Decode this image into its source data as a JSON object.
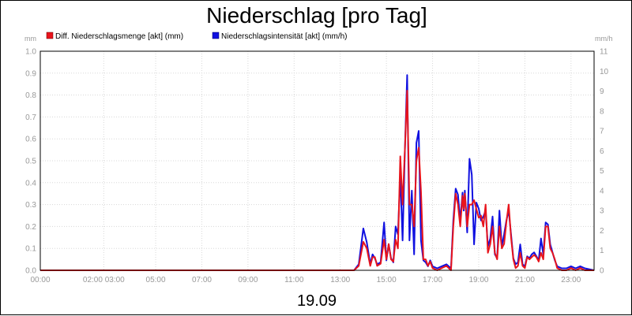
{
  "chart_data": {
    "type": "line",
    "title": "Niederschlag [pro Tag]",
    "date_label": "19.09",
    "left_axis": {
      "unit": "mm",
      "min": 0,
      "max": 1.0,
      "ticks": [
        "0.0",
        "0.1",
        "0.2",
        "0.3",
        "0.4",
        "0.5",
        "0.6",
        "0.7",
        "0.8",
        "0.9",
        "1.0"
      ]
    },
    "right_axis": {
      "unit": "mm/h",
      "min": 0,
      "max": 11,
      "ticks": [
        "0",
        "1",
        "2",
        "3",
        "4",
        "5",
        "6",
        "7",
        "8",
        "9",
        "10",
        "11"
      ]
    },
    "x_axis": {
      "min_hours": 0,
      "max_hours": 24,
      "ticks": [
        {
          "h": 0,
          "label": "00:00"
        },
        {
          "h": 2.75,
          "label": "02:00 03:00"
        },
        {
          "h": 5,
          "label": "05:00"
        },
        {
          "h": 7,
          "label": "07:00"
        },
        {
          "h": 9,
          "label": "09:00"
        },
        {
          "h": 11,
          "label": "11:00"
        },
        {
          "h": 13,
          "label": "13:00"
        },
        {
          "h": 15,
          "label": "15:00"
        },
        {
          "h": 17,
          "label": "17:00"
        },
        {
          "h": 19,
          "label": "19:00"
        },
        {
          "h": 21,
          "label": "21:00"
        },
        {
          "h": 23,
          "label": "23:00"
        }
      ]
    },
    "grid": true,
    "legend_position": "top-left",
    "series": [
      {
        "name": "Diff. Niederschlagsmenge [akt] (mm)",
        "color": "#e8141c",
        "axis": "left",
        "points": [
          [
            0,
            0
          ],
          [
            13.6,
            0
          ],
          [
            13.8,
            0.02
          ],
          [
            14.0,
            0.13
          ],
          [
            14.15,
            0.1
          ],
          [
            14.3,
            0.02
          ],
          [
            14.4,
            0.06
          ],
          [
            14.5,
            0.06
          ],
          [
            14.6,
            0.02
          ],
          [
            14.75,
            0.03
          ],
          [
            14.9,
            0.14
          ],
          [
            15.0,
            0.05
          ],
          [
            15.1,
            0.12
          ],
          [
            15.2,
            0.05
          ],
          [
            15.3,
            0.04
          ],
          [
            15.4,
            0.14
          ],
          [
            15.5,
            0.1
          ],
          [
            15.6,
            0.52
          ],
          [
            15.7,
            0.3
          ],
          [
            15.8,
            0.55
          ],
          [
            15.9,
            0.82
          ],
          [
            16.0,
            0.3
          ],
          [
            16.1,
            0.3
          ],
          [
            16.2,
            0.2
          ],
          [
            16.3,
            0.5
          ],
          [
            16.4,
            0.56
          ],
          [
            16.5,
            0.36
          ],
          [
            16.6,
            0.05
          ],
          [
            16.7,
            0.05
          ],
          [
            16.8,
            0.02
          ],
          [
            16.9,
            0.04
          ],
          [
            17.0,
            0.01
          ],
          [
            17.2,
            0.0
          ],
          [
            17.4,
            0.01
          ],
          [
            17.6,
            0.02
          ],
          [
            17.8,
            0.0
          ],
          [
            17.9,
            0.2
          ],
          [
            18.0,
            0.35
          ],
          [
            18.1,
            0.3
          ],
          [
            18.2,
            0.2
          ],
          [
            18.3,
            0.34
          ],
          [
            18.35,
            0.28
          ],
          [
            18.4,
            0.35
          ],
          [
            18.5,
            0.2
          ],
          [
            18.6,
            0.3
          ],
          [
            18.7,
            0.3
          ],
          [
            18.8,
            0.32
          ],
          [
            18.9,
            0.28
          ],
          [
            19.0,
            0.24
          ],
          [
            19.1,
            0.25
          ],
          [
            19.2,
            0.2
          ],
          [
            19.3,
            0.3
          ],
          [
            19.4,
            0.08
          ],
          [
            19.5,
            0.12
          ],
          [
            19.6,
            0.2
          ],
          [
            19.7,
            0.08
          ],
          [
            19.8,
            0.05
          ],
          [
            19.9,
            0.2
          ],
          [
            20.0,
            0.1
          ],
          [
            20.1,
            0.12
          ],
          [
            20.2,
            0.22
          ],
          [
            20.3,
            0.3
          ],
          [
            20.4,
            0.15
          ],
          [
            20.5,
            0.05
          ],
          [
            20.6,
            0.01
          ],
          [
            20.7,
            0.02
          ],
          [
            20.8,
            0.08
          ],
          [
            20.9,
            0.02
          ],
          [
            21.0,
            0.01
          ],
          [
            21.1,
            0.06
          ],
          [
            21.2,
            0.05
          ],
          [
            21.3,
            0.06
          ],
          [
            21.4,
            0.07
          ],
          [
            21.5,
            0.06
          ],
          [
            21.6,
            0.04
          ],
          [
            21.7,
            0.08
          ],
          [
            21.8,
            0.05
          ],
          [
            21.9,
            0.2
          ],
          [
            22.0,
            0.2
          ],
          [
            22.1,
            0.1
          ],
          [
            22.2,
            0.08
          ],
          [
            22.3,
            0.05
          ],
          [
            22.4,
            0.01
          ],
          [
            22.6,
            0.0
          ],
          [
            22.8,
            0.0
          ],
          [
            23.0,
            0.01
          ],
          [
            23.2,
            0.0
          ],
          [
            23.4,
            0.01
          ],
          [
            23.6,
            0.0
          ],
          [
            24,
            0
          ]
        ]
      },
      {
        "name": "Niederschlagsintensität [akt] (mm/h)",
        "color": "#1010e0",
        "axis": "right",
        "points": [
          [
            0,
            0
          ],
          [
            13.6,
            0
          ],
          [
            13.8,
            0.3
          ],
          [
            14.0,
            2.1
          ],
          [
            14.15,
            1.4
          ],
          [
            14.3,
            0.3
          ],
          [
            14.4,
            0.8
          ],
          [
            14.5,
            0.6
          ],
          [
            14.6,
            0.3
          ],
          [
            14.75,
            0.4
          ],
          [
            14.9,
            2.4
          ],
          [
            15.0,
            0.5
          ],
          [
            15.1,
            1.3
          ],
          [
            15.2,
            0.6
          ],
          [
            15.3,
            0.4
          ],
          [
            15.4,
            2.2
          ],
          [
            15.5,
            1.8
          ],
          [
            15.6,
            4.8
          ],
          [
            15.7,
            1.5
          ],
          [
            15.8,
            6.0
          ],
          [
            15.9,
            9.8
          ],
          [
            16.0,
            1.5
          ],
          [
            16.1,
            4.0
          ],
          [
            16.2,
            0.8
          ],
          [
            16.3,
            6.4
          ],
          [
            16.4,
            7.0
          ],
          [
            16.5,
            1.5
          ],
          [
            16.6,
            0.5
          ],
          [
            16.7,
            0.4
          ],
          [
            16.8,
            0.2
          ],
          [
            16.9,
            0.5
          ],
          [
            17.0,
            0.2
          ],
          [
            17.2,
            0.1
          ],
          [
            17.4,
            0.2
          ],
          [
            17.6,
            0.3
          ],
          [
            17.8,
            0.1
          ],
          [
            17.9,
            2.5
          ],
          [
            18.0,
            4.1
          ],
          [
            18.1,
            3.8
          ],
          [
            18.2,
            2.5
          ],
          [
            18.3,
            3.9
          ],
          [
            18.35,
            3.0
          ],
          [
            18.4,
            4.0
          ],
          [
            18.5,
            1.9
          ],
          [
            18.6,
            5.6
          ],
          [
            18.7,
            4.8
          ],
          [
            18.8,
            1.3
          ],
          [
            18.9,
            3.4
          ],
          [
            19.0,
            3.1
          ],
          [
            19.1,
            2.5
          ],
          [
            19.2,
            2.7
          ],
          [
            19.3,
            3.0
          ],
          [
            19.4,
            1.2
          ],
          [
            19.5,
            1.6
          ],
          [
            19.6,
            2.7
          ],
          [
            19.7,
            0.8
          ],
          [
            19.8,
            0.6
          ],
          [
            19.9,
            3.0
          ],
          [
            20.0,
            1.2
          ],
          [
            20.1,
            1.8
          ],
          [
            20.2,
            2.5
          ],
          [
            20.3,
            3.0
          ],
          [
            20.4,
            1.8
          ],
          [
            20.5,
            0.6
          ],
          [
            20.6,
            0.3
          ],
          [
            20.7,
            0.4
          ],
          [
            20.8,
            1.3
          ],
          [
            20.9,
            0.3
          ],
          [
            21.0,
            0.2
          ],
          [
            21.1,
            0.7
          ],
          [
            21.2,
            0.6
          ],
          [
            21.3,
            0.8
          ],
          [
            21.4,
            0.9
          ],
          [
            21.5,
            0.7
          ],
          [
            21.6,
            0.5
          ],
          [
            21.7,
            1.6
          ],
          [
            21.8,
            0.8
          ],
          [
            21.9,
            2.4
          ],
          [
            22.0,
            2.3
          ],
          [
            22.1,
            1.3
          ],
          [
            22.2,
            0.9
          ],
          [
            22.3,
            0.5
          ],
          [
            22.4,
            0.2
          ],
          [
            22.6,
            0.1
          ],
          [
            22.8,
            0.1
          ],
          [
            23.0,
            0.2
          ],
          [
            23.2,
            0.1
          ],
          [
            23.4,
            0.2
          ],
          [
            23.6,
            0.1
          ],
          [
            24,
            0
          ]
        ]
      }
    ]
  }
}
